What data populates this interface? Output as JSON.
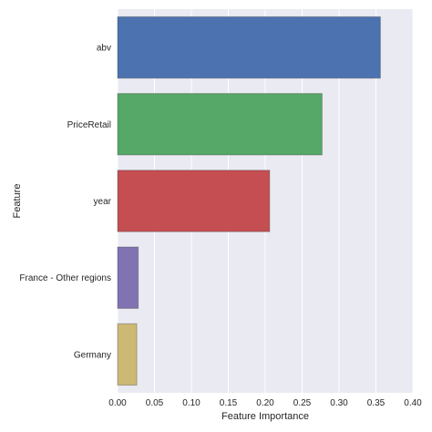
{
  "chart_data": {
    "type": "bar",
    "orientation": "horizontal",
    "categories": [
      "abv",
      "PriceRetail",
      "year",
      "France - Other regions",
      "Germany"
    ],
    "values": [
      0.356,
      0.277,
      0.206,
      0.028,
      0.026
    ],
    "colors": [
      "#4C72B0",
      "#55A868",
      "#C44E52",
      "#8172B2",
      "#CCB974"
    ],
    "xlabel": "Feature Importance",
    "ylabel": "Feature",
    "xlim": [
      0.0,
      0.4
    ],
    "xticks": [
      "0.00",
      "0.05",
      "0.10",
      "0.15",
      "0.20",
      "0.25",
      "0.30",
      "0.35",
      "0.40"
    ],
    "grid": true,
    "background": "#EAEAF2"
  }
}
